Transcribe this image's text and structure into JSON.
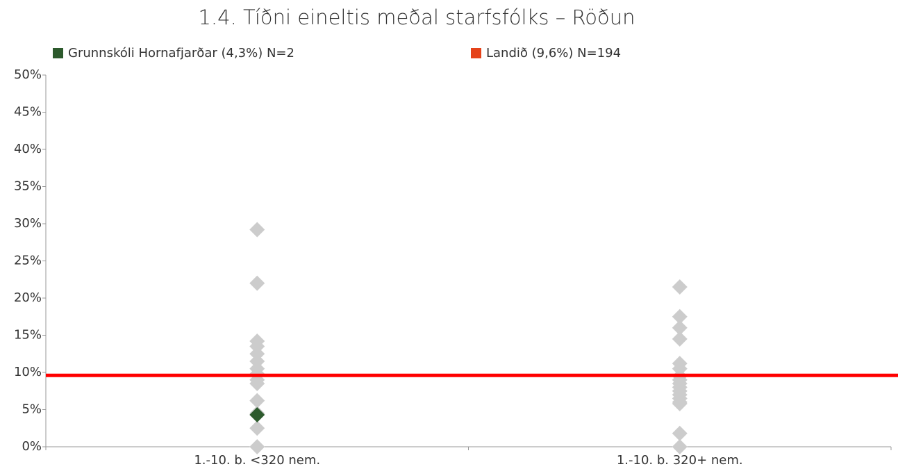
{
  "chart_data": {
    "type": "scatter",
    "title": "1.4. Tíðni eineltis meðal starfsfólks – Röðun",
    "categories": [
      "1.-10. b. <320 nem.",
      "1.-10. b. 320+ nem."
    ],
    "point_color": "#cccccc",
    "point_groups": [
      [
        29.2,
        22,
        14.2,
        13.5,
        12.5,
        11.5,
        10.5,
        9.8,
        9,
        8.5,
        6.2,
        4.5,
        2.5,
        0
      ],
      [
        21.5,
        17.5,
        16,
        14.5,
        11.2,
        10.5,
        9.5,
        9,
        8.5,
        8,
        7.5,
        7,
        6.5,
        6,
        5.8,
        1.8,
        0
      ]
    ],
    "series": [
      {
        "name": "Grunnskóli Hornafjarðar (4,3%) N=2",
        "color": "#2d5a2d",
        "values": [
          4.3,
          null
        ]
      }
    ],
    "reference_line": {
      "name": "Landið (9,6%) N=194",
      "color": "#ff0000",
      "legend_color": "#e5431a",
      "value": 9.6
    },
    "ylim": [
      0,
      50
    ],
    "yticks": [
      {
        "value": 0,
        "label": "0%"
      },
      {
        "value": 5,
        "label": "5%"
      },
      {
        "value": 10,
        "label": "10%"
      },
      {
        "value": 15,
        "label": "15%"
      },
      {
        "value": 20,
        "label": "20%"
      },
      {
        "value": 25,
        "label": "25%"
      },
      {
        "value": 30,
        "label": "30%"
      },
      {
        "value": 35,
        "label": "35%"
      },
      {
        "value": 40,
        "label": "40%"
      },
      {
        "value": 45,
        "label": "45%"
      },
      {
        "value": 50,
        "label": "50%"
      }
    ]
  }
}
